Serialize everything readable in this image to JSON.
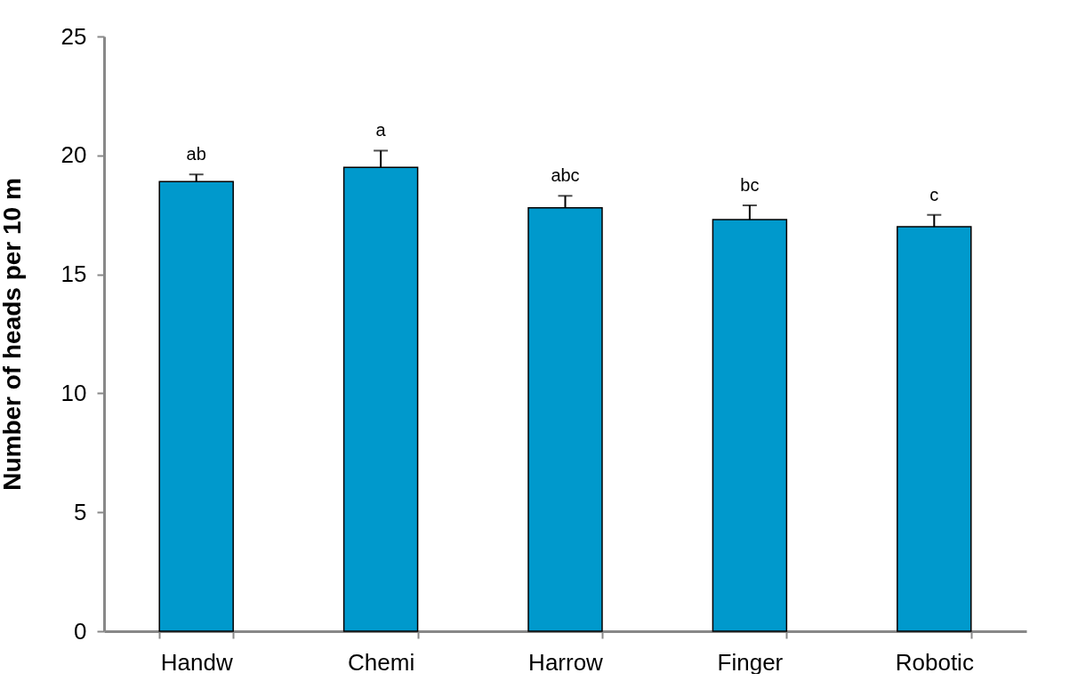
{
  "chart_data": {
    "type": "bar",
    "ylabel": "Number of heads per 10 m",
    "categories": [
      "Handw",
      "Chemi",
      "Harrow",
      "Finger",
      "Robotic"
    ],
    "values": [
      18.9,
      19.5,
      17.8,
      17.3,
      17.0
    ],
    "errors": [
      [
        18.9,
        19.2
      ],
      [
        19.5,
        20.2
      ],
      [
        17.8,
        18.3
      ],
      [
        17.3,
        17.9
      ],
      [
        17.0,
        17.5
      ]
    ],
    "color": "#0099cc",
    "ylim": [
      0,
      25
    ],
    "yticks": [
      0,
      5,
      10,
      15,
      20,
      25
    ],
    "grid": false,
    "annotations": [
      {
        "text": "ab",
        "x": "Handw",
        "y": 19.2
      },
      {
        "text": "a",
        "x": "Chemi",
        "y": 20.2
      },
      {
        "text": "abc",
        "x": "Harrow",
        "y": 18.3
      },
      {
        "text": "bc",
        "x": "Finger",
        "y": 17.9
      },
      {
        "text": "c",
        "x": "Robotic",
        "y": 17.5
      }
    ]
  }
}
